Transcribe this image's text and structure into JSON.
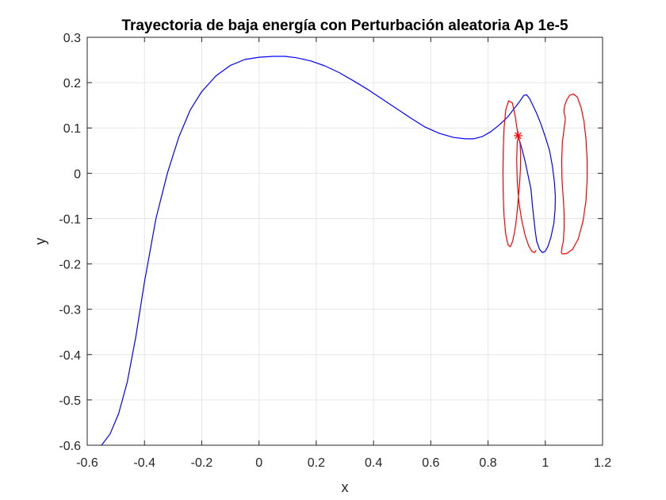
{
  "chart_data": {
    "type": "line",
    "title": "Trayectoria de baja energía con Perturbación aleatoria Ap 1e-5",
    "xlabel": "x",
    "ylabel": "y",
    "xlim": [
      -0.6,
      1.2
    ],
    "ylim": [
      -0.6,
      0.3
    ],
    "grid": true,
    "x_ticks": [
      -0.6,
      -0.4,
      -0.2,
      0,
      0.2,
      0.4,
      0.6,
      0.8,
      1,
      1.2
    ],
    "y_ticks": [
      -0.6,
      -0.5,
      -0.4,
      -0.3,
      -0.2,
      -0.1,
      0,
      0.1,
      0.2,
      0.3
    ],
    "x_tick_labels": [
      "-0.6",
      "-0.4",
      "-0.2",
      "0",
      "0.2",
      "0.4",
      "0.6",
      "0.8",
      "1",
      "1.2"
    ],
    "y_tick_labels": [
      "-0.6",
      "-0.5",
      "-0.4",
      "-0.3",
      "-0.2",
      "-0.1",
      "0",
      "0.1",
      "0.2",
      "0.3"
    ],
    "colors": {
      "trajectory": "#0000ff",
      "orbit": "#ff0000",
      "marker": "#ff0000",
      "grid": "#e6e6e6",
      "axis": "#262626"
    },
    "series": [
      {
        "kind": "line",
        "color": "#0000ff",
        "x": [
          -0.55,
          -0.52,
          -0.49,
          -0.46,
          -0.43,
          -0.4,
          -0.36,
          -0.32,
          -0.28,
          -0.24,
          -0.2,
          -0.15,
          -0.1,
          -0.05,
          0.0,
          0.05,
          0.09,
          0.13,
          0.18,
          0.23,
          0.28,
          0.33,
          0.38,
          0.43,
          0.48,
          0.53,
          0.58,
          0.63,
          0.68,
          0.72,
          0.75,
          0.78,
          0.81,
          0.84,
          0.87,
          0.89,
          0.91,
          0.925,
          0.935,
          0.945,
          0.955,
          0.97,
          0.985,
          1.0,
          1.015,
          1.025,
          1.032,
          1.035,
          1.034,
          1.03,
          1.02,
          1.01,
          1.0,
          0.99,
          0.98,
          0.97,
          0.965,
          0.96,
          0.955,
          0.95,
          0.94,
          0.93,
          0.92,
          0.912,
          0.907,
          0.905
        ],
        "y": [
          -0.6,
          -0.575,
          -0.53,
          -0.46,
          -0.36,
          -0.24,
          -0.1,
          0.0,
          0.08,
          0.14,
          0.18,
          0.215,
          0.238,
          0.251,
          0.256,
          0.258,
          0.258,
          0.255,
          0.248,
          0.237,
          0.222,
          0.204,
          0.185,
          0.164,
          0.143,
          0.122,
          0.102,
          0.088,
          0.079,
          0.076,
          0.076,
          0.081,
          0.092,
          0.107,
          0.125,
          0.142,
          0.158,
          0.172,
          0.173,
          0.165,
          0.152,
          0.132,
          0.108,
          0.08,
          0.05,
          0.015,
          -0.02,
          -0.05,
          -0.08,
          -0.11,
          -0.14,
          -0.16,
          -0.172,
          -0.175,
          -0.168,
          -0.15,
          -0.128,
          -0.1,
          -0.07,
          -0.035,
          -0.005,
          0.025,
          0.05,
          0.068,
          0.078,
          0.082
        ]
      },
      {
        "kind": "line",
        "color": "#ff0000",
        "x": [
          0.905,
          0.895,
          0.885,
          0.872,
          0.862,
          0.856,
          0.853,
          0.852,
          0.853,
          0.856,
          0.862,
          0.87,
          0.878,
          0.886,
          0.894,
          0.9,
          0.905,
          0.91,
          0.913,
          0.914,
          0.912,
          0.907,
          0.902,
          0.9,
          0.902,
          0.908,
          0.918,
          0.93,
          0.942,
          0.953,
          0.962,
          0.968
        ],
        "y": [
          0.082,
          0.125,
          0.155,
          0.16,
          0.14,
          0.1,
          0.05,
          0.0,
          -0.05,
          -0.095,
          -0.135,
          -0.158,
          -0.162,
          -0.15,
          -0.125,
          -0.095,
          -0.06,
          -0.025,
          0.01,
          0.04,
          0.065,
          0.08,
          0.07,
          0.03,
          -0.02,
          -0.065,
          -0.105,
          -0.138,
          -0.16,
          -0.172,
          -0.175,
          -0.17
        ]
      },
      {
        "kind": "line",
        "color": "#ff0000",
        "x": [
          1.07,
          1.06,
          1.057,
          1.058,
          1.062,
          1.066,
          1.066,
          1.063,
          1.058,
          1.056,
          1.06,
          1.075,
          1.095,
          1.115,
          1.132,
          1.142,
          1.146,
          1.146,
          1.142,
          1.135,
          1.125,
          1.112,
          1.098,
          1.085,
          1.075,
          1.068,
          1.065,
          1.066,
          1.068,
          1.07
        ],
        "y": [
          0.12,
          0.07,
          0.03,
          -0.01,
          -0.05,
          -0.09,
          -0.12,
          -0.15,
          -0.165,
          -0.175,
          -0.178,
          -0.177,
          -0.168,
          -0.145,
          -0.105,
          -0.06,
          -0.015,
          0.03,
          0.075,
          0.115,
          0.145,
          0.168,
          0.175,
          0.172,
          0.162,
          0.15,
          0.138,
          0.132,
          0.128,
          0.12
        ]
      },
      {
        "kind": "marker",
        "color": "#ff0000",
        "symbol": "*",
        "x": [
          0.905
        ],
        "y": [
          0.083
        ]
      }
    ]
  }
}
